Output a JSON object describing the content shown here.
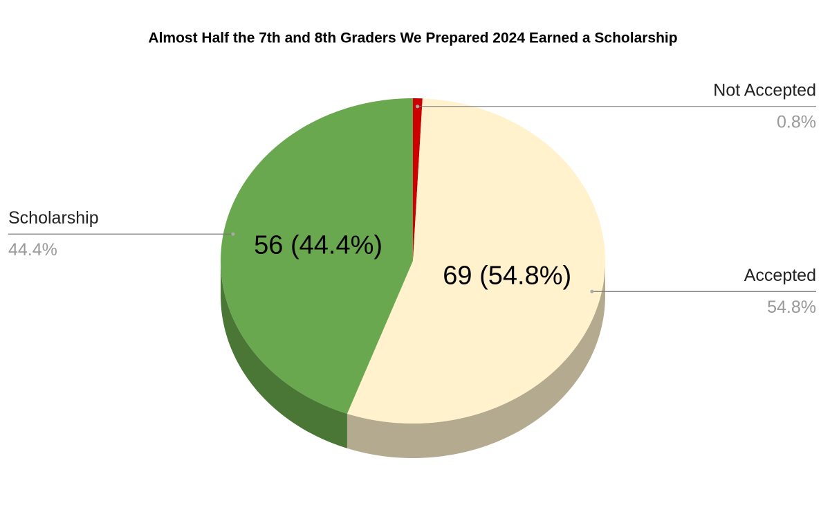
{
  "chart_data": {
    "type": "pie3d",
    "title": "Almost Half the 7th and 8th Graders We Prepared 2024 Earned a Scholarship",
    "categories": [
      "Not Accepted",
      "Accepted",
      "Scholarship"
    ],
    "values": [
      1,
      69,
      56
    ],
    "value_labels": [
      null,
      "69 (54.8%)",
      "56 (44.4%)"
    ],
    "percent_labels": [
      "0.8%",
      "54.8%",
      "44.4%"
    ],
    "colors": [
      "#cc0000",
      "#fff2cc",
      "#6aa84f"
    ],
    "side_colors": [
      "#8e0000",
      "#b3aa8f",
      "#4a7636"
    ]
  }
}
